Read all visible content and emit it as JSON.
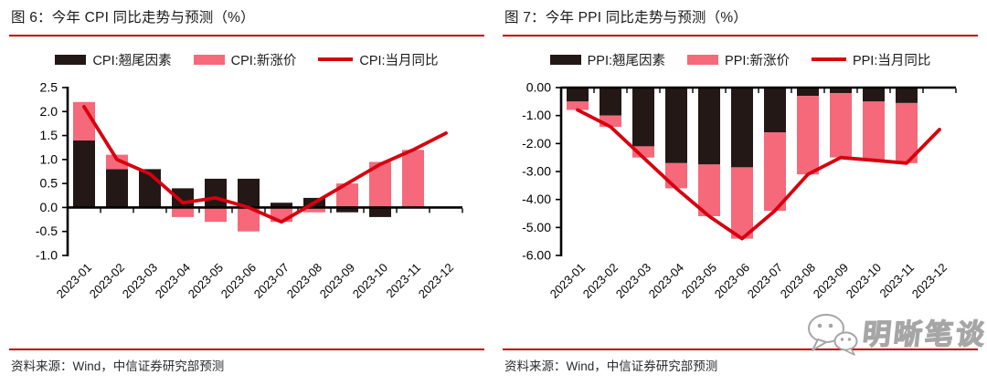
{
  "page": {
    "background": "#ffffff"
  },
  "colors": {
    "carryover_bar": "#231815",
    "new_price_bar": "#f5697a",
    "yoy_line": "#d7000f",
    "divider_red": "#c00000",
    "axis": "#000000",
    "watermark_gray": "#a6a6a6"
  },
  "watermark": {
    "icon": "wechat-icon",
    "text": "明晰笔谈"
  },
  "figures": [
    {
      "title": "图 6：今年 CPI 同比走势与预测（%）",
      "source_note": "资料来源：Wind，中信证券研究部预测",
      "legend": [
        {
          "label": "CPI:翘尾因素",
          "swatch": "bar-dark"
        },
        {
          "label": "CPI:新涨价",
          "swatch": "bar-pink"
        },
        {
          "label": "CPI:当月同比",
          "swatch": "line-red"
        }
      ],
      "chart_data": {
        "type": "bar",
        "subtype": "stacked-bars-with-line",
        "categories": [
          "2023-01",
          "2023-02",
          "2023-03",
          "2023-04",
          "2023-05",
          "2023-06",
          "2023-07",
          "2023-08",
          "2023-09",
          "2023-10",
          "2023-11",
          "2023-12"
        ],
        "series": [
          {
            "name": "CPI:翘尾因素",
            "type": "bar",
            "color": "carryover_bar",
            "values": [
              1.4,
              0.8,
              0.8,
              0.4,
              0.6,
              0.6,
              0.1,
              0.2,
              -0.1,
              -0.2,
              0,
              0
            ]
          },
          {
            "name": "CPI:新涨价",
            "type": "bar",
            "color": "new_price_bar",
            "values": [
              0.8,
              0.3,
              0,
              -0.2,
              -0.3,
              -0.5,
              -0.3,
              -0.1,
              0.5,
              0.95,
              1.2,
              0
            ]
          },
          {
            "name": "CPI:当月同比",
            "type": "line",
            "color": "yoy_line",
            "values": [
              2.1,
              1.0,
              0.7,
              0.1,
              0.2,
              0.0,
              -0.3,
              0.1,
              0.5,
              0.9,
              1.2,
              1.55
            ]
          }
        ],
        "ylim": [
          -1.0,
          2.5
        ],
        "yticks": [
          "2.5",
          "2.0",
          "1.5",
          "1.0",
          "0.5",
          "0.0",
          "-0.5",
          "-1.0"
        ],
        "grid": false,
        "legend_position": "top"
      }
    },
    {
      "title": "图 7：今年 PPI 同比走势与预测（%）",
      "source_note": "资料来源：Wind，中信证券研究部预测",
      "legend": [
        {
          "label": "PPI:翘尾因素",
          "swatch": "bar-dark"
        },
        {
          "label": "PPI:新涨价",
          "swatch": "bar-pink"
        },
        {
          "label": "PPI:当月同比",
          "swatch": "line-red"
        }
      ],
      "chart_data": {
        "type": "bar",
        "subtype": "stacked-bars-with-line",
        "categories": [
          "2023-01",
          "2023-02",
          "2023-03",
          "2023-04",
          "2023-05",
          "2023-06",
          "2023-07",
          "2023-08",
          "2023-09",
          "2023-10",
          "2023-11",
          "2023-12"
        ],
        "series": [
          {
            "name": "PPI:翘尾因素",
            "type": "bar",
            "color": "carryover_bar",
            "values": [
              -0.5,
              -1.0,
              -2.1,
              -2.7,
              -2.75,
              -2.85,
              -1.6,
              -0.3,
              -0.2,
              -0.5,
              -0.55,
              0
            ]
          },
          {
            "name": "PPI:新涨价",
            "type": "bar",
            "color": "new_price_bar",
            "values": [
              -0.3,
              -0.4,
              -0.4,
              -0.9,
              -1.85,
              -2.55,
              -2.8,
              -2.8,
              -2.3,
              -2.1,
              -2.15,
              0
            ]
          },
          {
            "name": "PPI:当月同比",
            "type": "line",
            "color": "yoy_line",
            "values": [
              -0.8,
              -1.4,
              -2.5,
              -3.6,
              -4.6,
              -5.4,
              -4.4,
              -3.1,
              -2.5,
              -2.6,
              -2.7,
              -1.5
            ]
          }
        ],
        "ylim": [
          -6.0,
          0.0
        ],
        "yticks": [
          "0.00",
          "-1.00",
          "-2.00",
          "-3.00",
          "-4.00",
          "-5.00",
          "-6.00"
        ],
        "grid": false,
        "legend_position": "top"
      }
    }
  ]
}
